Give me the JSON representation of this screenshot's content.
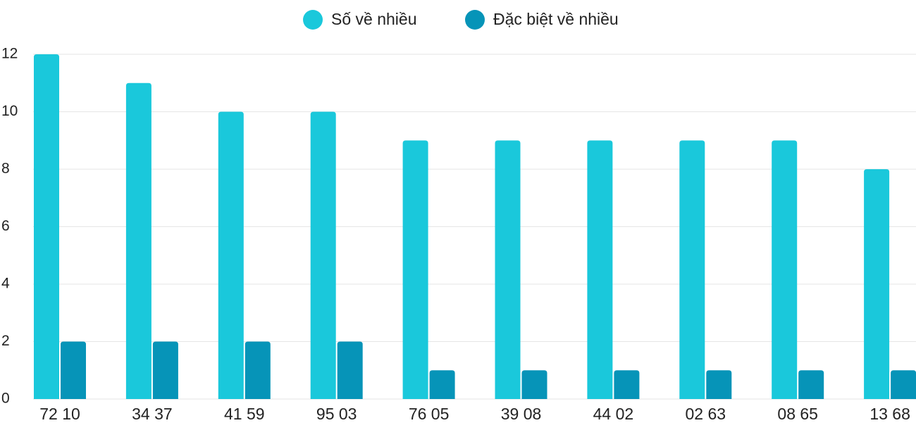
{
  "chart_data": {
    "type": "bar",
    "categories": [
      "72 10",
      "34 37",
      "41 59",
      "95 03",
      "76 05",
      "39 08",
      "44 02",
      "02 63",
      "08 65",
      "13 68"
    ],
    "series": [
      {
        "name": "Số về nhiều",
        "color": "#1ac8db",
        "values": [
          12,
          11,
          10,
          10,
          9,
          9,
          9,
          9,
          9,
          8
        ]
      },
      {
        "name": "Đặc biệt về nhiều",
        "color": "#0694b8",
        "values": [
          2,
          2,
          2,
          2,
          1,
          1,
          1,
          1,
          1,
          1
        ]
      }
    ],
    "ylim": [
      0,
      12
    ],
    "yticks": [
      0,
      2,
      4,
      6,
      8,
      10,
      12
    ],
    "grid": true,
    "legend": "top"
  }
}
